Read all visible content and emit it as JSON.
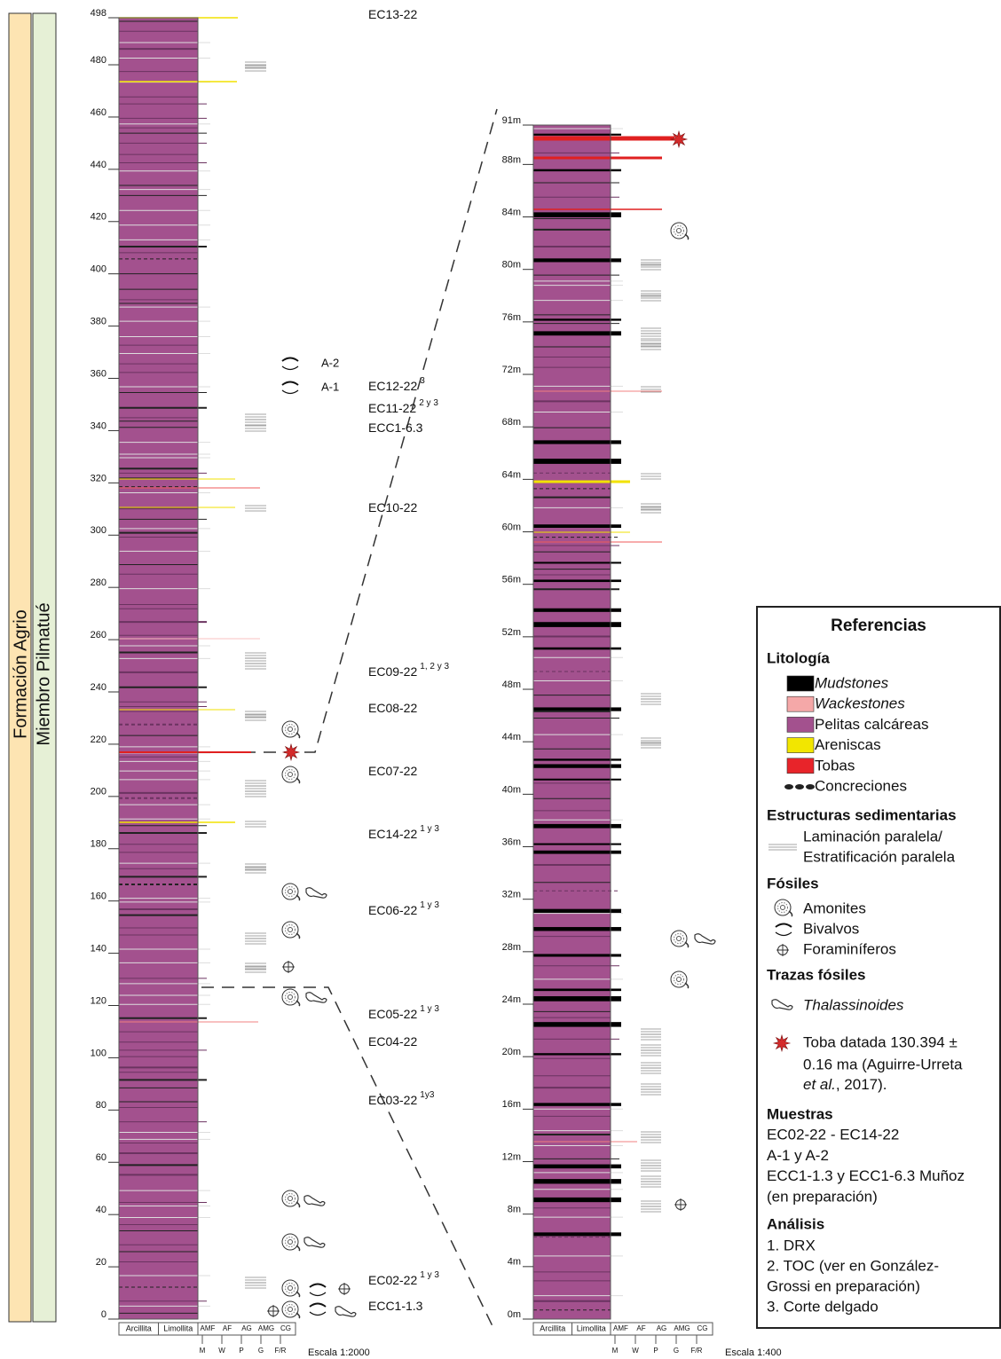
{
  "formation": "Formación Agrio",
  "member": "Miembro Pilmatué",
  "left_column": {
    "ticks": [
      0,
      20,
      40,
      60,
      80,
      100,
      120,
      140,
      160,
      180,
      200,
      220,
      240,
      260,
      280,
      300,
      320,
      340,
      360,
      380,
      400,
      420,
      440,
      460,
      480,
      498
    ],
    "lithology_labels": [
      "Arcillita",
      "Limollita"
    ],
    "grain_labels": [
      "AMF",
      "AF",
      "AG",
      "AMG",
      "CG"
    ],
    "texture_labels": [
      "M",
      "W",
      "P",
      "G",
      "F/R"
    ],
    "scale": "Escala 1:2000"
  },
  "right_column": {
    "ticks": [
      {
        "value": 0,
        "label": "0m"
      },
      {
        "value": 4,
        "label": "4m"
      },
      {
        "value": 8,
        "label": "8m"
      },
      {
        "value": 12,
        "label": "12m"
      },
      {
        "value": 16,
        "label": "16m"
      },
      {
        "value": 20,
        "label": "20m"
      },
      {
        "value": 24,
        "label": "24m"
      },
      {
        "value": 28,
        "label": "28m"
      },
      {
        "value": 32,
        "label": "32m"
      },
      {
        "value": 36,
        "label": "36m"
      },
      {
        "value": 40,
        "label": "40m"
      },
      {
        "value": 44,
        "label": "44m"
      },
      {
        "value": 48,
        "label": "48m"
      },
      {
        "value": 52,
        "label": "52m"
      },
      {
        "value": 56,
        "label": "56m"
      },
      {
        "value": 60,
        "label": "60m"
      },
      {
        "value": 64,
        "label": "64m"
      },
      {
        "value": 68,
        "label": "68m"
      },
      {
        "value": 72,
        "label": "72m"
      },
      {
        "value": 76,
        "label": "76m"
      },
      {
        "value": 80,
        "label": "80m"
      },
      {
        "value": 84,
        "label": "84m"
      },
      {
        "value": 88,
        "label": "88m"
      },
      {
        "value": 91,
        "label": "91m"
      }
    ],
    "lithology_labels": [
      "Arcillita",
      "Limollita"
    ],
    "grain_labels": [
      "AMF",
      "AF",
      "AG",
      "AMG",
      "CG"
    ],
    "texture_labels": [
      "M",
      "W",
      "P",
      "G",
      "F/R"
    ],
    "scale": "Escala 1:400"
  },
  "samples": [
    {
      "name": "EC13-22"
    },
    {
      "name": "EC12-22",
      "note": "3"
    },
    {
      "name": "EC11-22",
      "note": "2 y 3"
    },
    {
      "name": "ECC1-6.3"
    },
    {
      "name": "EC10-22"
    },
    {
      "name": "EC09-22",
      "note": "1, 2 y 3"
    },
    {
      "name": "EC08-22"
    },
    {
      "name": "EC07-22"
    },
    {
      "name": "EC14-22",
      "note": "1 y 3"
    },
    {
      "name": "EC06-22",
      "note": "1 y 3"
    },
    {
      "name": "EC05-22",
      "note": "1 y 3"
    },
    {
      "name": "EC04-22"
    },
    {
      "name": "EC03-22",
      "note": "1y3"
    },
    {
      "name": "EC02-22",
      "note": "1 y 3"
    },
    {
      "name": "ECC1-1.3"
    }
  ],
  "bivalve_samples": [
    "A-2",
    "A-1"
  ],
  "legend": {
    "title": "Referencias",
    "lithology_title": "Litología",
    "lithology": [
      "Mudstones",
      "Wackestones",
      "Pelitas calcáreas",
      "Areniscas",
      "Tobas",
      "Concreciones"
    ],
    "structures_title": "Estructuras sedimentarias",
    "structures": [
      "Laminación paralela/",
      "Estratificación paralela"
    ],
    "fossils_title": "Fósiles",
    "fossils": [
      "Amonites",
      "Bivalvos",
      "Foraminíferos"
    ],
    "traces_title": "Trazas fósiles",
    "traces": [
      "Thalassinoides"
    ],
    "dated_tuff": [
      "Toba datada 130.394 ±",
      "0.16 ma (Aguirre-Urreta",
      "et al.",
      ", 2017)."
    ],
    "samples_title": "Muestras",
    "samples": [
      "EC02-22 - EC14-22",
      "A-1 y A-2",
      "ECC1-1.3 y ECC1-6.3 Muñoz",
      "(en preparación)"
    ],
    "analysis_title": "Análisis",
    "analysis": [
      "1. DRX",
      "2. TOC (ver en González-",
      "Grossi en preparación)",
      "3. Corte delgado"
    ]
  }
}
